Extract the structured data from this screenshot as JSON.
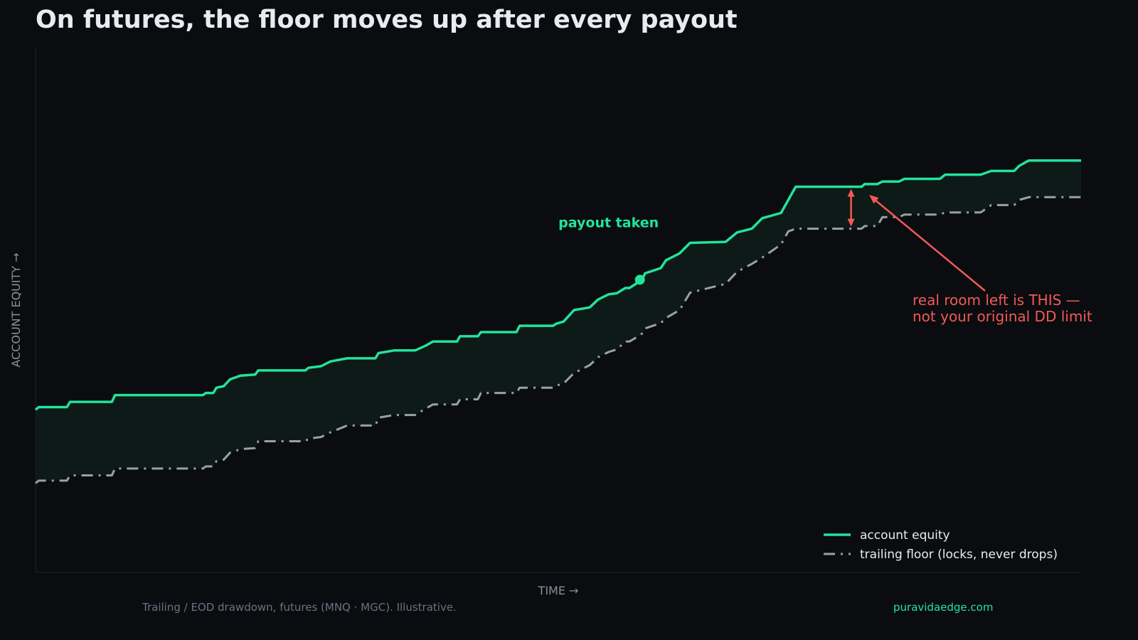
{
  "colors": {
    "background": "#0a0c10",
    "equity": "#22e39a",
    "floor": "#9aa0a8",
    "fill": "#0d1a17",
    "annotation": "#f25a55",
    "text": "#e8ebf0",
    "muted": "#8b9099"
  },
  "chart_data": {
    "type": "line",
    "title": "On futures, the floor moves up after every payout",
    "xlabel": "TIME  →",
    "ylabel": "ACCOUNT EQUITY  →",
    "xlim": [
      0,
      100
    ],
    "ylim": [
      0,
      100
    ],
    "grid": false,
    "legend_position": "bottom-right",
    "series": [
      {
        "name": "account equity",
        "style": "solid",
        "values": [
          [
            0,
            31
          ],
          [
            0.3,
            31.5
          ],
          [
            3,
            31.5
          ],
          [
            3.3,
            32.5
          ],
          [
            7.3,
            32.5
          ],
          [
            7.6,
            33.8
          ],
          [
            16,
            33.8
          ],
          [
            16.3,
            34.2
          ],
          [
            17,
            34.2
          ],
          [
            17.3,
            35.2
          ],
          [
            18,
            35.5
          ],
          [
            18.6,
            36.8
          ],
          [
            19.6,
            37.5
          ],
          [
            21,
            37.7
          ],
          [
            21.3,
            38.5
          ],
          [
            25.8,
            38.5
          ],
          [
            26.1,
            39
          ],
          [
            27.3,
            39.3
          ],
          [
            28.2,
            40.2
          ],
          [
            29.8,
            40.8
          ],
          [
            32.5,
            40.8
          ],
          [
            32.8,
            41.8
          ],
          [
            34.3,
            42.3
          ],
          [
            36.3,
            42.3
          ],
          [
            37.3,
            43.2
          ],
          [
            38,
            44
          ],
          [
            40.3,
            44
          ],
          [
            40.6,
            45
          ],
          [
            42.3,
            45
          ],
          [
            42.6,
            45.8
          ],
          [
            46,
            45.8
          ],
          [
            46.3,
            47
          ],
          [
            49.5,
            47
          ],
          [
            49.8,
            47.4
          ],
          [
            50.5,
            47.8
          ],
          [
            51.5,
            50
          ],
          [
            53,
            50.5
          ],
          [
            53.8,
            52
          ],
          [
            54.8,
            53
          ],
          [
            55.6,
            53.2
          ],
          [
            56.4,
            54.2
          ],
          [
            56.8,
            54.2
          ],
          [
            57.8,
            55.5
          ],
          [
            58,
            55.8
          ],
          [
            58.3,
            57
          ],
          [
            59.8,
            58
          ],
          [
            60.3,
            59.5
          ],
          [
            61.6,
            60.8
          ],
          [
            62.6,
            62.8
          ],
          [
            66,
            63
          ],
          [
            67.1,
            64.8
          ],
          [
            68.5,
            65.5
          ],
          [
            69.5,
            67.5
          ],
          [
            71.3,
            68.5
          ],
          [
            72,
            71
          ],
          [
            72.7,
            73.5
          ],
          [
            79,
            73.5
          ],
          [
            79.3,
            74
          ],
          [
            80.5,
            74
          ],
          [
            81,
            74.5
          ],
          [
            82.6,
            74.5
          ],
          [
            83.1,
            75
          ],
          [
            86.5,
            75
          ],
          [
            87,
            75.8
          ],
          [
            90.4,
            75.8
          ],
          [
            91.4,
            76.5
          ],
          [
            93.6,
            76.5
          ],
          [
            94.1,
            77.5
          ],
          [
            95,
            78.5
          ],
          [
            100,
            78.5
          ]
        ]
      },
      {
        "name": "trailing floor (locks, never drops)",
        "style": "dashed",
        "values": [
          [
            0,
            17
          ],
          [
            0.3,
            17.5
          ],
          [
            3,
            17.5
          ],
          [
            3.3,
            18.5
          ],
          [
            7.3,
            18.5
          ],
          [
            7.6,
            19.8
          ],
          [
            16,
            19.8
          ],
          [
            16.3,
            20.2
          ],
          [
            17,
            20.2
          ],
          [
            17.3,
            21.2
          ],
          [
            18,
            21.5
          ],
          [
            18.6,
            22.8
          ],
          [
            19.6,
            23.5
          ],
          [
            21,
            23.7
          ],
          [
            21.3,
            25
          ],
          [
            25.8,
            25
          ],
          [
            26.1,
            25.5
          ],
          [
            27.3,
            25.8
          ],
          [
            28.2,
            26.7
          ],
          [
            29.8,
            28
          ],
          [
            32.5,
            28
          ],
          [
            32.8,
            29.5
          ],
          [
            34.3,
            30
          ],
          [
            36.3,
            30
          ],
          [
            37.3,
            31.2
          ],
          [
            38,
            32
          ],
          [
            40.3,
            32
          ],
          [
            40.6,
            33
          ],
          [
            42.3,
            33
          ],
          [
            42.6,
            34.2
          ],
          [
            46,
            34.2
          ],
          [
            46.3,
            35.2
          ],
          [
            49.5,
            35.2
          ],
          [
            49.8,
            35.6
          ],
          [
            50.5,
            36
          ],
          [
            51.5,
            38
          ],
          [
            53,
            39.5
          ],
          [
            53.8,
            41
          ],
          [
            54.8,
            42
          ],
          [
            55.6,
            42.5
          ],
          [
            56.4,
            44
          ],
          [
            56.8,
            44
          ],
          [
            57.8,
            45.2
          ],
          [
            58,
            45.5
          ],
          [
            58.3,
            46.5
          ],
          [
            59.8,
            47.5
          ],
          [
            60.3,
            48.5
          ],
          [
            61.6,
            50
          ],
          [
            62.6,
            53.3
          ],
          [
            66,
            55
          ],
          [
            67.1,
            57.3
          ],
          [
            68.5,
            58.8
          ],
          [
            69.5,
            60
          ],
          [
            71.3,
            62.5
          ],
          [
            72,
            65
          ],
          [
            72.7,
            65.5
          ],
          [
            79,
            65.5
          ],
          [
            79.3,
            66
          ],
          [
            80.5,
            66
          ],
          [
            81,
            67.7
          ],
          [
            82.6,
            67.7
          ],
          [
            83.1,
            68.2
          ],
          [
            86.5,
            68.2
          ],
          [
            87,
            68.6
          ],
          [
            90.4,
            68.6
          ],
          [
            91.4,
            70
          ],
          [
            93.6,
            70
          ],
          [
            94.1,
            71
          ],
          [
            95,
            71.5
          ],
          [
            100,
            71.5
          ]
        ]
      }
    ],
    "annotations": {
      "payout": {
        "label": "payout taken",
        "x": 57.8,
        "y": 55.5
      },
      "room": {
        "text_line1": "real room left is THIS —",
        "text_line2": "not your original DD limit",
        "arrow_x": 78,
        "arrow_from_y": 73.5,
        "arrow_to_y": 65.5
      }
    }
  },
  "footer": {
    "note": "Trailing / EOD drawdown, futures (MNQ · MGC).  Illustrative.",
    "brand": "puravidaedge.com"
  }
}
